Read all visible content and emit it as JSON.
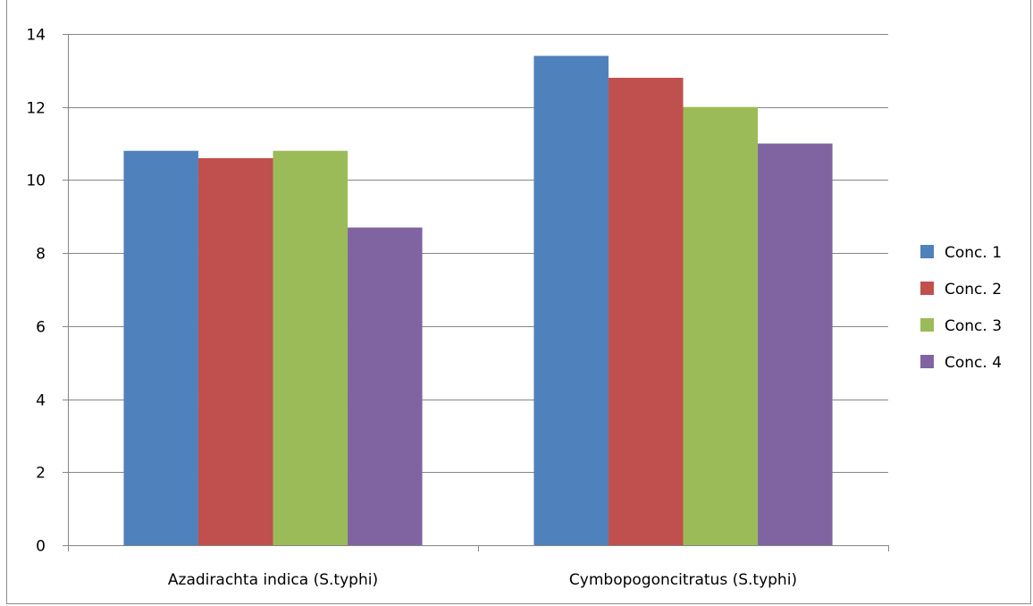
{
  "chart_data": {
    "type": "bar",
    "title": "",
    "xlabel": "",
    "ylabel": "",
    "categories": [
      "Azadirachta indica (S.typhi)",
      "Cymbopogoncitratus (S.typhi)"
    ],
    "series": [
      {
        "name": "Conc. 1",
        "color": "#4f81bd",
        "values": [
          10.8,
          13.4
        ]
      },
      {
        "name": "Conc. 2",
        "color": "#c0504d",
        "values": [
          10.6,
          12.8
        ]
      },
      {
        "name": "Conc. 3",
        "color": "#9bbb59",
        "values": [
          10.8,
          12.0
        ]
      },
      {
        "name": "Conc. 4",
        "color": "#8064a2",
        "values": [
          8.7,
          11.0
        ]
      }
    ],
    "ylim": [
      0,
      14
    ],
    "yticks": [
      0,
      2,
      4,
      6,
      8,
      10,
      12,
      14
    ],
    "grid": true,
    "legend_position": "right"
  }
}
